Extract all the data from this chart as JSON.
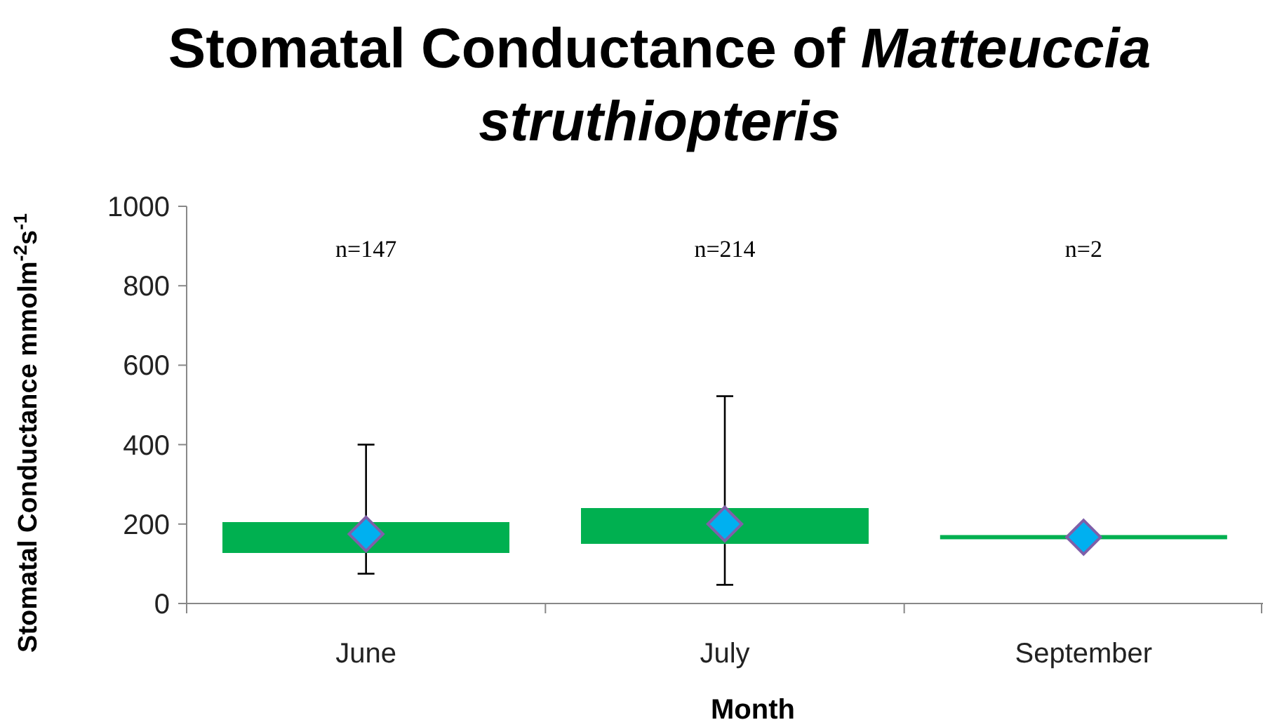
{
  "chart_data": {
    "type": "box",
    "title": "Stomatal Conductance of Matteuccia struthiopteris",
    "xlabel": "Month",
    "ylabel": "Stomatal Conductance mmolm$^{-2}$s$^{-1}$",
    "categories": [
      "June",
      "July",
      "September"
    ],
    "boxes": [
      {
        "low": 75,
        "q1": 128,
        "median": 175,
        "q3": 205,
        "high": 400,
        "mean": 175
      },
      {
        "low": 47,
        "q1": 150,
        "median": 200,
        "q3": 240,
        "high": 522,
        "mean": 200
      },
      {
        "low": 167,
        "q1": 167,
        "median": 167,
        "q3": 167,
        "high": 167,
        "mean": 167
      }
    ],
    "color": "#00b050",
    "marker": "diamond",
    "ylim": [
      0,
      1000
    ],
    "yticks": [
      0,
      200,
      400,
      600,
      800,
      1000
    ],
    "grid": false,
    "annotations": [
      "n=147",
      "n=214",
      "n=2"
    ]
  }
}
